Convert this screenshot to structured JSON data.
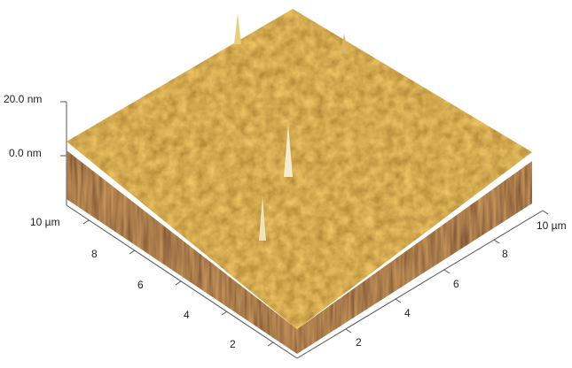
{
  "z_axis": {
    "labels": [
      "20.0 nm",
      "0.0 nm"
    ]
  },
  "left_axis": {
    "labels": [
      "10 µm",
      "8",
      "6",
      "4",
      "2"
    ]
  },
  "right_axis": {
    "labels": [
      "10 µm",
      "8",
      "6",
      "4",
      "2"
    ]
  }
}
